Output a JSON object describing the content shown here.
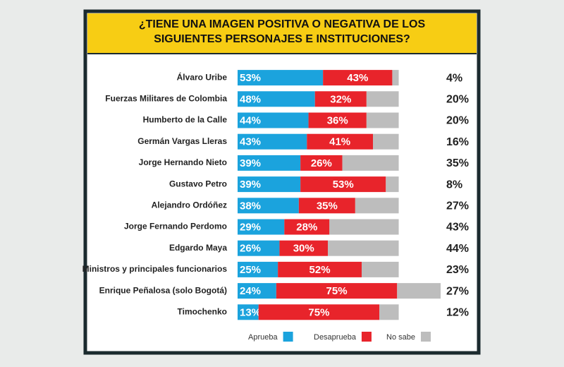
{
  "chart_data": {
    "type": "stacked-bar",
    "title": "¿TIENE UNA IMAGEN POSITIVA O NEGATIVA DE LOS SIGUIENTES PERSONAJES E INSTITUCIONES?",
    "categories": [
      "Álvaro Uribe",
      "Fuerzas Militares de Colombia",
      "Humberto de la Calle",
      "Germán Vargas Lleras",
      "Jorge Hernando Nieto",
      "Gustavo Petro",
      "Alejandro Ordóñez",
      "Jorge Fernando Perdomo",
      "Edgardo Maya",
      "Ministros y principales funcionarios",
      "Enrique Peñalosa (solo Bogotá)",
      "Timochenko"
    ],
    "series": [
      {
        "name": "Aprueba",
        "color": "#1ba3dd",
        "values": [
          53,
          48,
          44,
          43,
          39,
          39,
          38,
          29,
          26,
          25,
          24,
          13
        ],
        "value_labels": [
          "53%",
          "48%",
          "44%",
          "43%",
          "39%",
          "39%",
          "38%",
          "29%",
          "26%",
          "25%",
          "24%",
          "13%"
        ]
      },
      {
        "name": "Desaprueba",
        "color": "#e8242b",
        "values": [
          43,
          32,
          36,
          41,
          26,
          53,
          35,
          28,
          30,
          52,
          75,
          75
        ],
        "value_labels": [
          "43%",
          "32%",
          "36%",
          "41%",
          "26%",
          "53%",
          "35%",
          "28%",
          "30%",
          "52%",
          "75%",
          "75%"
        ]
      },
      {
        "name": "No sabe",
        "color": "#bdbdbd",
        "values": [
          4,
          20,
          20,
          16,
          35,
          8,
          27,
          43,
          44,
          23,
          27,
          12
        ],
        "value_labels": [
          "4%",
          "20%",
          "20%",
          "16%",
          "35%",
          "8%",
          "27%",
          "43%",
          "44%",
          "23%",
          "27%",
          "12%"
        ]
      }
    ],
    "legend": "bottom"
  }
}
